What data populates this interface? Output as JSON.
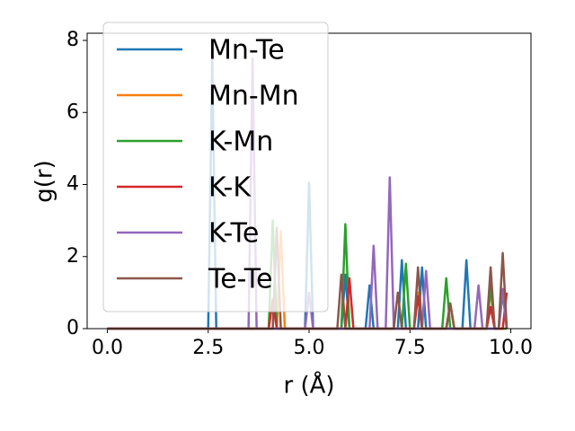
{
  "chart_data": {
    "type": "line",
    "xlabel": "r (Å)",
    "ylabel": "g(r)",
    "x": [
      0,
      0.1,
      0.2,
      0.3,
      0.4,
      0.5,
      0.6,
      0.7,
      0.8,
      0.9,
      1,
      1.1,
      1.2,
      1.3,
      1.4,
      1.5,
      1.6,
      1.7,
      1.8,
      1.9,
      2,
      2.1,
      2.2,
      2.3,
      2.4,
      2.5,
      2.6,
      2.7,
      2.8,
      2.9,
      3,
      3.1,
      3.2,
      3.3,
      3.4,
      3.5,
      3.6,
      3.7,
      3.8,
      3.9,
      4,
      4.1,
      4.2,
      4.3,
      4.4,
      4.5,
      4.6,
      4.7,
      4.8,
      4.9,
      5,
      5.1,
      5.2,
      5.3,
      5.4,
      5.5,
      5.6,
      5.7,
      5.8,
      5.9,
      6,
      6.1,
      6.2,
      6.3,
      6.4,
      6.5,
      6.6,
      6.7,
      6.8,
      6.9,
      7,
      7.1,
      7.2,
      7.3,
      7.4,
      7.5,
      7.6,
      7.7,
      7.8,
      7.9,
      8,
      8.1,
      8.2,
      8.3,
      8.4,
      8.5,
      8.6,
      8.7,
      8.8,
      8.9,
      9,
      9.1,
      9.2,
      9.3,
      9.4,
      9.5,
      9.6,
      9.7,
      9.8,
      9.9
    ],
    "series": [
      {
        "name": "Mn-Te",
        "color": "#1f77b4",
        "values": [
          0,
          0,
          0,
          0,
          0,
          0,
          0,
          0,
          0,
          0,
          0,
          0,
          0,
          0,
          0,
          0,
          0,
          0,
          0,
          0,
          0,
          0,
          0,
          0,
          0,
          0,
          7.5,
          0,
          0,
          0,
          0,
          0,
          0,
          0,
          0,
          0,
          0,
          0,
          0,
          0,
          0,
          0,
          0,
          0,
          0,
          0,
          0,
          0,
          0,
          0,
          4.05,
          0,
          0,
          0,
          0,
          0,
          0,
          0,
          0,
          1.5,
          0,
          0,
          0,
          0,
          0,
          1.2,
          0,
          0,
          0,
          0,
          0,
          0,
          0,
          1.9,
          0,
          0,
          0,
          0,
          1.7,
          0,
          0,
          0,
          0,
          0,
          0,
          0,
          0,
          0,
          0,
          1.9,
          0,
          0,
          0,
          0,
          0,
          0,
          0,
          0,
          1.0,
          0
        ]
      },
      {
        "name": "Mn-Mn",
        "color": "#ff7f0e",
        "values": [
          0,
          0,
          0,
          0,
          0,
          0,
          0,
          0,
          0,
          0,
          0,
          0,
          0,
          0,
          0,
          0,
          0,
          0,
          0,
          0,
          0,
          0,
          0,
          0,
          0,
          0,
          0,
          0,
          0,
          0,
          0,
          0,
          0,
          0,
          0,
          0,
          0,
          0,
          0,
          0,
          0,
          0,
          0,
          2.7,
          0,
          0,
          0,
          0,
          0,
          0,
          0,
          0,
          0,
          0,
          0,
          0,
          0,
          0,
          0,
          0,
          0,
          0,
          0,
          0,
          0,
          0,
          0,
          0,
          0,
          0,
          0,
          0,
          0,
          0,
          0,
          0,
          0,
          1.0,
          0,
          0,
          0,
          0,
          0,
          0,
          0,
          0,
          0,
          0,
          0,
          0,
          0,
          0,
          0,
          0,
          0,
          1.1,
          0,
          0,
          0,
          0
        ]
      },
      {
        "name": "K-Mn",
        "color": "#2ca02c",
        "values": [
          0,
          0,
          0,
          0,
          0,
          0,
          0,
          0,
          0,
          0,
          0,
          0,
          0,
          0,
          0,
          0,
          0,
          0,
          0,
          0,
          0,
          0,
          0,
          0,
          0,
          0,
          0,
          0,
          0,
          0,
          0,
          0,
          0,
          0,
          0,
          0,
          0,
          0,
          0,
          0,
          0,
          3.0,
          0,
          0,
          0,
          0,
          0,
          0,
          0,
          0,
          0,
          0,
          0,
          0,
          0,
          0,
          0,
          0,
          0,
          2.9,
          0,
          0,
          0,
          0,
          0,
          0,
          0,
          0,
          0,
          0,
          0,
          0,
          0,
          0,
          1.8,
          0,
          0,
          0,
          0,
          0,
          0,
          0,
          0,
          0,
          1.4,
          0,
          0,
          0,
          0,
          0,
          0,
          0,
          0,
          0,
          0,
          1.2,
          0,
          0,
          0,
          0
        ]
      },
      {
        "name": "K-K",
        "color": "#d62728",
        "values": [
          0,
          0,
          0,
          0,
          0,
          0,
          0,
          0,
          0,
          0,
          0,
          0,
          0,
          0,
          0,
          0,
          0,
          0,
          0,
          0,
          0,
          0,
          0,
          0,
          0,
          0,
          0,
          0,
          0,
          0,
          0,
          0,
          0,
          0,
          0,
          0,
          0,
          0,
          0,
          0,
          0,
          0.8,
          0,
          0,
          0,
          0,
          0,
          0,
          0,
          0,
          0,
          0,
          0,
          0,
          0,
          0,
          0,
          0,
          0,
          0,
          1.4,
          0,
          0,
          0,
          0,
          0,
          0,
          0,
          0,
          0,
          0,
          0,
          0,
          0,
          0,
          0,
          0,
          0.9,
          0,
          0,
          0,
          0,
          0,
          0,
          0,
          0.7,
          0,
          0,
          0,
          0,
          0,
          0,
          0,
          0,
          0,
          0.6,
          0,
          0,
          0,
          1.0
        ]
      },
      {
        "name": "K-Te",
        "color": "#9467bd",
        "values": [
          0,
          0,
          0,
          0,
          0,
          0,
          0,
          0,
          0,
          0,
          0,
          0,
          0,
          0,
          0,
          0,
          0,
          0,
          0,
          0,
          0,
          0,
          0,
          0,
          0,
          0,
          0,
          0,
          0,
          0,
          0,
          0,
          0,
          0,
          0,
          0,
          7.5,
          0,
          0,
          0,
          0,
          0,
          0,
          0,
          0,
          0,
          0,
          0,
          0,
          0,
          1.0,
          0,
          0,
          0,
          0,
          0,
          0,
          0,
          0,
          0,
          0,
          0,
          0,
          0,
          0,
          0,
          2.3,
          0,
          0,
          0,
          4.2,
          0,
          0,
          0,
          0,
          0,
          0,
          0,
          0,
          1.6,
          0,
          0,
          0,
          0,
          0,
          0,
          0,
          0,
          0,
          0,
          0,
          0,
          1.2,
          0,
          0,
          0,
          0,
          0,
          1.1,
          0
        ]
      },
      {
        "name": "Te-Te",
        "color": "#8c564b",
        "values": [
          0,
          0,
          0,
          0,
          0,
          0,
          0,
          0,
          0,
          0,
          0,
          0,
          0,
          0,
          0,
          0,
          0,
          0,
          0,
          0,
          0,
          0,
          0,
          0,
          0,
          0,
          0,
          0,
          0,
          0,
          0,
          0,
          0,
          0,
          0,
          0,
          0,
          0,
          0,
          0,
          0,
          0,
          2.8,
          0,
          0,
          0,
          0,
          0,
          0,
          0,
          0,
          0,
          0,
          0,
          0,
          0,
          0,
          0,
          1.5,
          0,
          0,
          0,
          0,
          0,
          0,
          0,
          0,
          0,
          0,
          0,
          0,
          0,
          1.0,
          0,
          0,
          0,
          0,
          1.7,
          0,
          0,
          0,
          0,
          0,
          0,
          0,
          0.7,
          0,
          0,
          0,
          0,
          0,
          0,
          0,
          0,
          0,
          1.7,
          0,
          0,
          2.1,
          0
        ]
      }
    ],
    "xlim": [
      -0.5,
      10.5
    ],
    "xticks": [
      {
        "value": 0,
        "label": "0.0"
      },
      2.5,
      {
        "value": 5,
        "label": "5.0"
      },
      7.5,
      {
        "value": 10,
        "label": "10.0"
      }
    ],
    "ylim": [
      0,
      8.2
    ],
    "yticks": [
      0,
      2,
      4,
      6,
      8
    ],
    "legend": "upper left"
  }
}
